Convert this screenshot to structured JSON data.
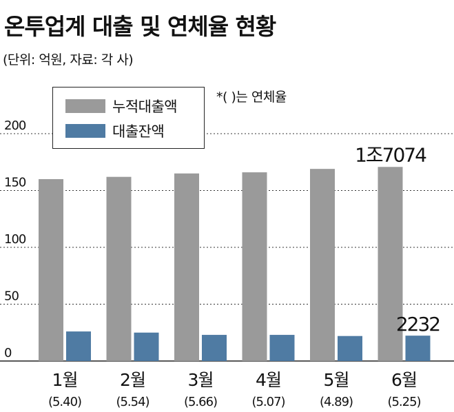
{
  "title": "온투업계 대출 및 연체율 현황",
  "unit": "(단위: 억원, 자료: 각 사)",
  "note": "*(    )는 연체율",
  "colors": {
    "cumulative": "#9a9a9a",
    "balance": "#4f7ba3"
  },
  "chart_data": {
    "type": "bar",
    "categories": [
      "1월",
      "2월",
      "3월",
      "4월",
      "5월",
      "6월"
    ],
    "delinquency_rates": [
      "(5.40)",
      "(5.54)",
      "(5.66)",
      "(5.07)",
      "(4.89)",
      "(5.25)"
    ],
    "series": [
      {
        "name": "누적대출액",
        "values": [
          160,
          162,
          165,
          166,
          169,
          170.74
        ]
      },
      {
        "name": "대출잔액",
        "values": [
          26,
          25,
          23,
          23,
          22,
          22.32
        ]
      }
    ],
    "yticks": [
      0,
      50,
      100,
      150,
      200
    ],
    "ylim": [
      0,
      200
    ],
    "grid": "dotted",
    "legend": "top-left",
    "annotations": {
      "cumulative_last": "1조7074",
      "balance_last": "2232"
    }
  }
}
